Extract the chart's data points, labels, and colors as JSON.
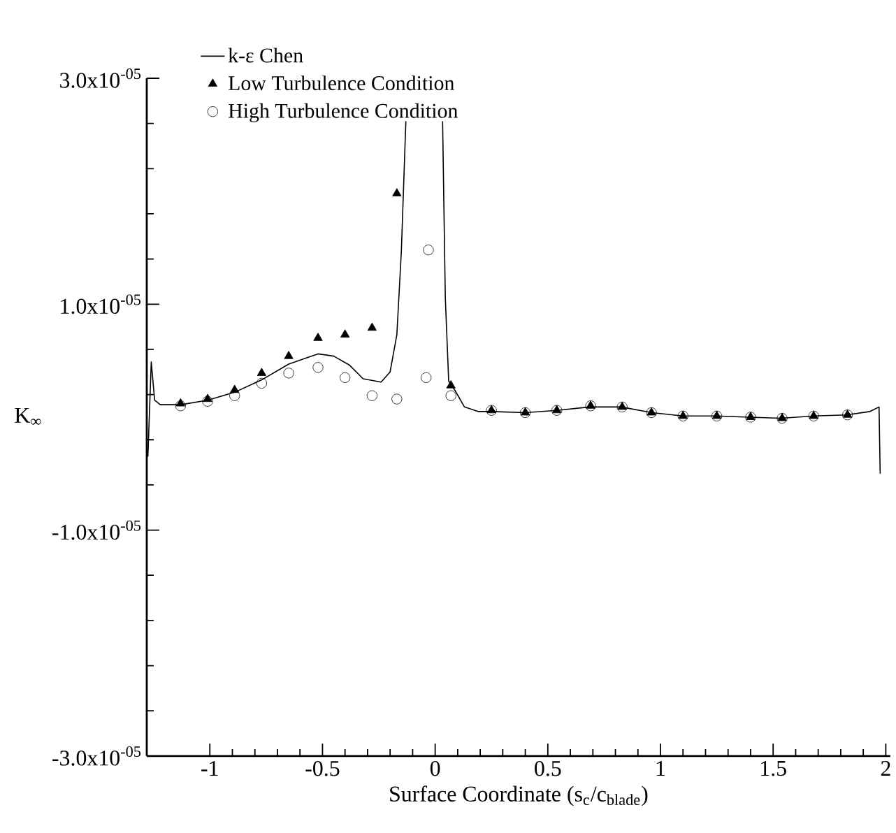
{
  "chart_data": {
    "type": "line",
    "xlabel": "Surface Coordinate  (s$_{c}$/c$_{blade}$)",
    "ylabel": "K$_{∞}$",
    "xlim": [
      -1.28,
      2.02
    ],
    "xticks": [
      -1,
      -0.5,
      0,
      0.5,
      1,
      1.5,
      2
    ],
    "ylim": [
      -3e-05,
      3e-05
    ],
    "yticks": [
      {
        "value": -3e-05,
        "label": "-3.0x10$^{-05}$"
      },
      {
        "value": -1e-05,
        "label": "-1.0x10$^{-05}$"
      },
      {
        "value": 1e-05,
        "label": "1.0x10$^{-05}$"
      },
      {
        "value": 3e-05,
        "label": "3.0x10$^{-05}$"
      }
    ],
    "grid": false,
    "legend": "top",
    "series": [
      {
        "name": "k-ε Chen",
        "type": "line",
        "color": "#000000",
        "marker": "none",
        "line_style": "solid",
        "x": [
          -1.275,
          -1.26,
          -1.245,
          -1.22,
          -1.13,
          -1.01,
          -0.89,
          -0.77,
          -0.65,
          -0.52,
          -0.45,
          -0.38,
          -0.32,
          -0.24,
          -0.2,
          -0.17,
          -0.15,
          -0.13,
          -0.04,
          0.033,
          0.045,
          0.06,
          0.09,
          0.13,
          0.19,
          0.25,
          0.4,
          0.54,
          0.685,
          0.826,
          0.962,
          1.1,
          1.247,
          1.395,
          1.536,
          1.68,
          1.825,
          1.93,
          1.97,
          1.975
        ],
        "values": [
          -3.5e-06,
          4.9e-06,
          1.5e-06,
          1.1e-06,
          1.1e-06,
          1.5e-06,
          2.2e-06,
          3.3e-06,
          4.7e-06,
          5.6e-06,
          5.4e-06,
          4.6e-06,
          3.4e-06,
          3.1e-06,
          4e-06,
          7.3e-06,
          1.47e-05,
          2.62e-05,
          null,
          2.62e-05,
          1.06e-05,
          3.2e-06,
          2.3e-06,
          9e-07,
          5e-07,
          5e-07,
          4e-07,
          6e-07,
          9e-07,
          9e-07,
          4e-07,
          1e-07,
          1e-07,
          0,
          -1e-07,
          1e-07,
          2e-07,
          5e-07,
          9e-07,
          -5e-06
        ]
      },
      {
        "name": "Low Turbulence Condition",
        "type": "scatter",
        "color": "#000000",
        "marker": "triangle",
        "x": [
          -1.13,
          -1.01,
          -0.89,
          -0.77,
          -0.65,
          -0.52,
          -0.4,
          -0.28,
          -0.17,
          0.07,
          0.25,
          0.4,
          0.54,
          0.69,
          0.83,
          0.96,
          1.1,
          1.25,
          1.4,
          1.54,
          1.68,
          1.83
        ],
        "values": [
          1.2e-06,
          1.6e-06,
          2.4e-06,
          3.9e-06,
          5.4e-06,
          7e-06,
          7.3e-06,
          7.9e-06,
          1.98e-05,
          2.8e-06,
          6e-07,
          4e-07,
          6e-07,
          1e-06,
          9e-07,
          4e-07,
          1e-07,
          1e-07,
          0,
          -1e-07,
          1e-07,
          2e-07
        ]
      },
      {
        "name": "High Turbulence Condition",
        "type": "scatter",
        "color": "#000000",
        "marker": "circle",
        "x": [
          -1.13,
          -1.01,
          -0.89,
          -0.77,
          -0.65,
          -0.52,
          -0.4,
          -0.28,
          -0.17,
          -0.03,
          -0.04,
          0.07,
          0.25,
          0.4,
          0.54,
          0.69,
          0.83,
          0.96,
          1.1,
          1.25,
          1.4,
          1.54,
          1.68,
          1.83
        ],
        "values": [
          1e-06,
          1.4e-06,
          1.9e-06,
          3e-06,
          3.9e-06,
          4.4e-06,
          3.5e-06,
          1.9e-06,
          1.6e-06,
          1.48e-05,
          3.5e-06,
          1.9e-06,
          6e-07,
          4e-07,
          6e-07,
          1e-06,
          9e-07,
          4e-07,
          1e-07,
          1e-07,
          0,
          -1e-07,
          1e-07,
          2e-07
        ]
      }
    ]
  }
}
